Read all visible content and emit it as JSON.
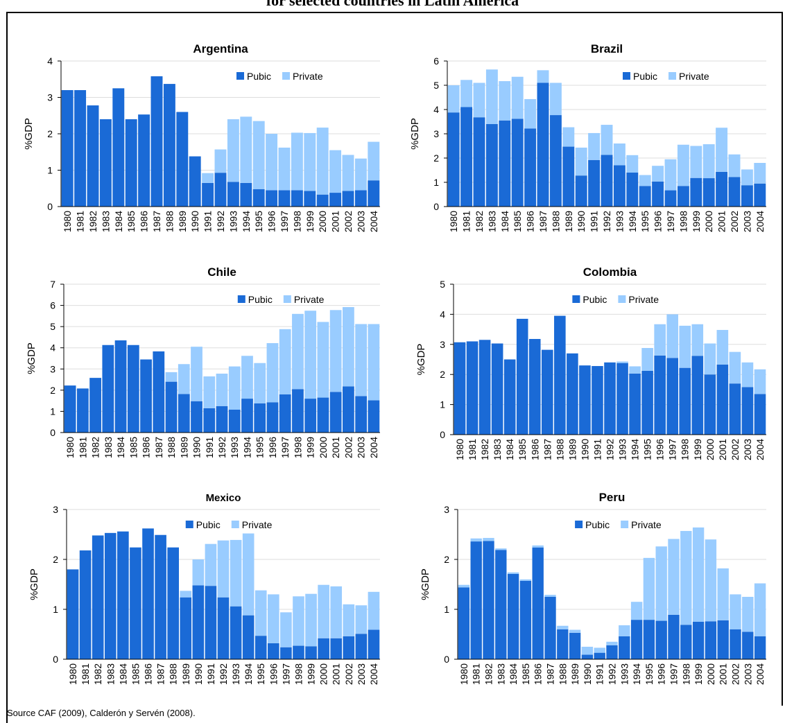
{
  "title": "for selected countries in Latin America",
  "source": "Source CAF (2009),  Calderón y Servén (2008).",
  "chart_data": [
    {
      "type": "bar",
      "stacked": true,
      "title": "Argentina",
      "y_label": "%GDP",
      "legend": "upper right",
      "grid": true,
      "categories": [
        "1980",
        "1981",
        "1982",
        "1983",
        "1984",
        "1985",
        "1986",
        "1987",
        "1988",
        "1989",
        "1990",
        "1991",
        "1992",
        "1993",
        "1994",
        "1995",
        "1996",
        "1997",
        "1998",
        "1999",
        "2000",
        "2001",
        "2002",
        "2003",
        "2004"
      ],
      "ylim": [
        0,
        4
      ],
      "yticks": [
        0,
        1,
        2,
        3,
        4
      ],
      "series": [
        {
          "name": "Pubic",
          "color": "#1a6ad6",
          "values": [
            3.2,
            3.2,
            2.78,
            2.4,
            3.25,
            2.4,
            2.53,
            3.58,
            3.37,
            2.6,
            1.38,
            0.65,
            0.93,
            0.68,
            0.65,
            0.48,
            0.45,
            0.45,
            0.45,
            0.43,
            0.33,
            0.38,
            0.43,
            0.45,
            0.72
          ]
        },
        {
          "name": "Private",
          "color": "#99ccff",
          "values": [
            0,
            0,
            0,
            0,
            0,
            0,
            0,
            0,
            0,
            0,
            0,
            0.27,
            0.64,
            1.72,
            1.82,
            1.87,
            1.55,
            1.17,
            1.58,
            1.59,
            1.84,
            1.17,
            0.99,
            0.87,
            1.06
          ]
        }
      ]
    },
    {
      "type": "bar",
      "stacked": true,
      "title": "Brazil",
      "y_label": "%GDP",
      "legend": "upper right",
      "grid": true,
      "categories": [
        "1980",
        "1981",
        "1982",
        "1983",
        "1984",
        "1985",
        "1986",
        "1987",
        "1988",
        "1989",
        "1990",
        "1991",
        "1992",
        "1993",
        "1994",
        "1995",
        "1996",
        "1997",
        "1998",
        "1999",
        "2000",
        "2001",
        "2002",
        "2003",
        "2004"
      ],
      "ylim": [
        0,
        6
      ],
      "yticks": [
        0,
        1,
        2,
        3,
        4,
        5,
        6
      ],
      "series": [
        {
          "name": "Pubic",
          "color": "#1a6ad6",
          "values": [
            3.88,
            4.1,
            3.68,
            3.4,
            3.55,
            3.62,
            3.22,
            5.1,
            3.77,
            2.47,
            1.28,
            1.92,
            2.13,
            1.7,
            1.4,
            0.85,
            1.03,
            0.67,
            0.85,
            1.18,
            1.17,
            1.43,
            1.22,
            0.88,
            0.95
          ]
        },
        {
          "name": "Private",
          "color": "#99ccff",
          "values": [
            1.12,
            1.12,
            1.42,
            2.25,
            1.62,
            1.73,
            1.21,
            0.52,
            1.33,
            0.8,
            1.15,
            1.11,
            1.24,
            0.9,
            0.72,
            0.45,
            0.65,
            1.28,
            1.7,
            1.32,
            1.4,
            1.82,
            0.93,
            0.65,
            0.85
          ]
        }
      ]
    },
    {
      "type": "bar",
      "stacked": true,
      "title": "Chile",
      "y_label": "%GDP",
      "legend": "upper right",
      "grid": true,
      "categories": [
        "1980",
        "1981",
        "1982",
        "1983",
        "1984",
        "1985",
        "1986",
        "1987",
        "1988",
        "1989",
        "1990",
        "1991",
        "1992",
        "1993",
        "1994",
        "1995",
        "1996",
        "1997",
        "1998",
        "1999",
        "2000",
        "2001",
        "2002",
        "2003",
        "2004"
      ],
      "ylim": [
        0,
        7
      ],
      "yticks": [
        0,
        1,
        2,
        3,
        4,
        5,
        6,
        7
      ],
      "series": [
        {
          "name": "Pubic",
          "color": "#1a6ad6",
          "values": [
            2.22,
            2.08,
            2.58,
            4.13,
            4.35,
            4.13,
            3.45,
            3.83,
            2.4,
            1.82,
            1.48,
            1.15,
            1.25,
            1.08,
            1.6,
            1.38,
            1.43,
            1.8,
            2.05,
            1.6,
            1.65,
            1.92,
            2.18,
            1.72,
            1.52
          ]
        },
        {
          "name": "Private",
          "color": "#99ccff",
          "values": [
            0,
            0,
            0,
            0,
            0,
            0,
            0,
            0,
            0.45,
            1.41,
            2.57,
            1.5,
            1.53,
            2.04,
            2.02,
            1.9,
            2.79,
            3.08,
            3.55,
            4.15,
            3.57,
            3.86,
            3.74,
            3.4,
            3.6
          ]
        }
      ]
    },
    {
      "type": "bar",
      "stacked": true,
      "title": "Colombia",
      "y_label": "%GDP",
      "legend": "upper center",
      "grid": true,
      "categories": [
        "1980",
        "1981",
        "1982",
        "1983",
        "1984",
        "1985",
        "1986",
        "1987",
        "1988",
        "1989",
        "1990",
        "1991",
        "1992",
        "1993",
        "1994",
        "1995",
        "1996",
        "1997",
        "1998",
        "1999",
        "2000",
        "2001",
        "2002",
        "2003",
        "2004"
      ],
      "ylim": [
        0,
        5
      ],
      "yticks": [
        0,
        1,
        2,
        3,
        4,
        5
      ],
      "series": [
        {
          "name": "Pubic",
          "color": "#1a6ad6",
          "values": [
            3.07,
            3.1,
            3.15,
            3.03,
            2.5,
            3.85,
            3.18,
            2.82,
            3.95,
            2.7,
            2.3,
            2.28,
            2.4,
            2.38,
            2.03,
            2.12,
            2.63,
            2.55,
            2.22,
            2.62,
            2.0,
            2.33,
            1.7,
            1.58,
            1.35
          ]
        },
        {
          "name": "Private",
          "color": "#99ccff",
          "values": [
            0,
            0,
            0,
            0,
            0,
            0,
            0,
            0,
            0,
            0,
            0,
            0,
            0,
            0.05,
            0.24,
            0.76,
            1.04,
            1.45,
            1.4,
            1.05,
            1.03,
            1.15,
            1.05,
            0.82,
            0.82
          ]
        }
      ]
    },
    {
      "type": "bar",
      "stacked": true,
      "title": "Mexico",
      "y_label": "%GDP",
      "legend": "upper center",
      "grid": true,
      "categories": [
        "1980",
        "1981",
        "1982",
        "1983",
        "1984",
        "1985",
        "1986",
        "1987",
        "1988",
        "1989",
        "1990",
        "1991",
        "1992",
        "1993",
        "1994",
        "1995",
        "1996",
        "1997",
        "1998",
        "1999",
        "2000",
        "2001",
        "2002",
        "2003",
        "2004"
      ],
      "ylim": [
        0,
        3
      ],
      "yticks": [
        0,
        1,
        2,
        3
      ],
      "series": [
        {
          "name": "Pubic",
          "color": "#1a6ad6",
          "values": [
            1.8,
            2.18,
            2.48,
            2.53,
            2.56,
            2.24,
            2.62,
            2.49,
            2.24,
            1.24,
            1.48,
            1.47,
            1.24,
            1.06,
            0.88,
            0.47,
            0.32,
            0.24,
            0.27,
            0.26,
            0.42,
            0.42,
            0.46,
            0.51,
            0.59
          ]
        },
        {
          "name": "Private",
          "color": "#99ccff",
          "values": [
            0,
            0,
            0,
            0,
            0,
            0,
            0,
            0,
            0,
            0.13,
            0.52,
            0.84,
            1.14,
            1.33,
            1.64,
            0.91,
            0.98,
            0.7,
            0.99,
            1.05,
            1.07,
            1.04,
            0.64,
            0.57,
            0.76
          ]
        }
      ]
    },
    {
      "type": "bar",
      "stacked": true,
      "title": "Peru",
      "y_label": "%GDP",
      "legend": "upper center",
      "grid": true,
      "categories": [
        "1980",
        "1981",
        "1982",
        "1983",
        "1984",
        "1985",
        "1986",
        "1987",
        "1988",
        "1989",
        "1990",
        "1991",
        "1992",
        "1993",
        "1994",
        "1995",
        "1996",
        "1997",
        "1998",
        "1999",
        "2000",
        "2001",
        "2002",
        "2003",
        "2004"
      ],
      "ylim": [
        0,
        3
      ],
      "yticks": [
        0,
        1,
        2,
        3
      ],
      "series": [
        {
          "name": "Pubic",
          "color": "#1a6ad6",
          "values": [
            1.44,
            2.36,
            2.37,
            2.19,
            1.71,
            1.57,
            2.24,
            1.25,
            0.6,
            0.53,
            0.09,
            0.13,
            0.28,
            0.46,
            0.79,
            0.79,
            0.77,
            0.89,
            0.69,
            0.75,
            0.76,
            0.78,
            0.6,
            0.55,
            0.46
          ]
        },
        {
          "name": "Private",
          "color": "#99ccff",
          "values": [
            0.05,
            0.06,
            0.06,
            0.03,
            0.03,
            0.03,
            0.04,
            0.04,
            0.07,
            0.06,
            0.16,
            0.1,
            0.07,
            0.22,
            0.36,
            1.24,
            1.49,
            1.52,
            1.88,
            1.89,
            1.64,
            1.04,
            0.7,
            0.7,
            1.06
          ]
        }
      ]
    }
  ]
}
